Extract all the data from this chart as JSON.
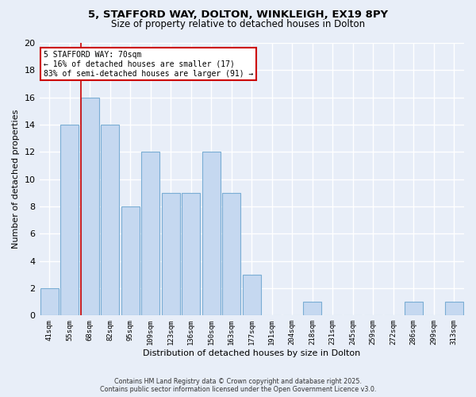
{
  "title1": "5, STAFFORD WAY, DOLTON, WINKLEIGH, EX19 8PY",
  "title2": "Size of property relative to detached houses in Dolton",
  "xlabel": "Distribution of detached houses by size in Dolton",
  "ylabel": "Number of detached properties",
  "categories": [
    "41sqm",
    "55sqm",
    "68sqm",
    "82sqm",
    "95sqm",
    "109sqm",
    "123sqm",
    "136sqm",
    "150sqm",
    "163sqm",
    "177sqm",
    "191sqm",
    "204sqm",
    "218sqm",
    "231sqm",
    "245sqm",
    "259sqm",
    "272sqm",
    "286sqm",
    "299sqm",
    "313sqm"
  ],
  "values": [
    2,
    14,
    16,
    14,
    8,
    12,
    9,
    9,
    12,
    9,
    3,
    0,
    0,
    1,
    0,
    0,
    0,
    0,
    1,
    0,
    1
  ],
  "bar_color": "#c5d8f0",
  "bar_edge_color": "#7aadd4",
  "bg_color": "#e8eef8",
  "grid_color": "#ffffff",
  "red_line_index": 2,
  "annotation_text": "5 STAFFORD WAY: 70sqm\n← 16% of detached houses are smaller (17)\n83% of semi-detached houses are larger (91) →",
  "annotation_box_color": "#ffffff",
  "annotation_box_edge": "#cc0000",
  "red_line_color": "#cc0000",
  "footer1": "Contains HM Land Registry data © Crown copyright and database right 2025.",
  "footer2": "Contains public sector information licensed under the Open Government Licence v3.0.",
  "ylim": [
    0,
    20
  ],
  "yticks": [
    0,
    2,
    4,
    6,
    8,
    10,
    12,
    14,
    16,
    18,
    20
  ]
}
